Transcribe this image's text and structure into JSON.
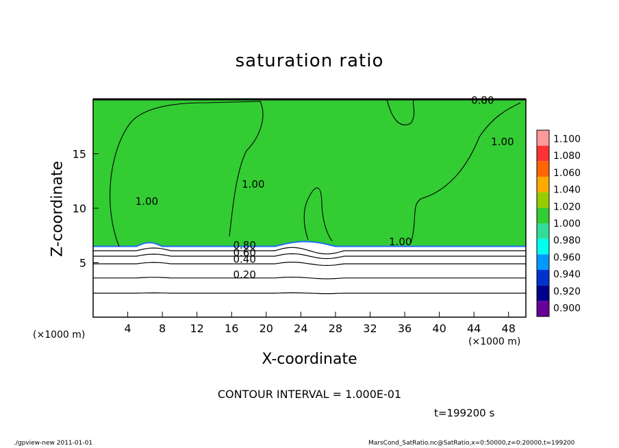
{
  "title": "saturation ratio",
  "footer": {
    "left": "./gpview-new  2011-01-01",
    "right": "MarsCond_SatRatio.nc@SatRatio,x=0:50000,z=0:20000,t=199200"
  },
  "colors": {
    "background": "#ffffff",
    "field_saturated": "#33cc33",
    "field_subsaturated": "#ffffff",
    "contour": "#000000"
  },
  "chart_data": {
    "type": "heatmap",
    "title": "saturation ratio",
    "xlabel": "X-coordinate",
    "ylabel": "Z-coordinate",
    "x_unit_label": "(×1000 m)",
    "x_unit_label_right": "(×1000 m)",
    "xlim": [
      0,
      50
    ],
    "ylim": [
      0,
      20
    ],
    "x_ticks": [
      4,
      8,
      12,
      16,
      20,
      24,
      28,
      32,
      36,
      40,
      44,
      48
    ],
    "y_ticks": [
      5,
      10,
      15
    ],
    "contour_interval": "CONTOUR INTERVAL = 1.000E-01",
    "time": "t=199200 s",
    "colorbar": {
      "levels": [
        "1.100",
        "1.080",
        "1.060",
        "1.040",
        "1.020",
        "1.000",
        "0.980",
        "0.960",
        "0.940",
        "0.920",
        "0.900"
      ],
      "colors": [
        "#ff9999",
        "#ff3333",
        "#ff6600",
        "#ffaa00",
        "#99cc00",
        "#33cc33",
        "#33dd99",
        "#00ffee",
        "#0099ff",
        "#0033cc",
        "#000088",
        "#660099"
      ]
    },
    "contour_labels": [
      {
        "text": "1.00",
        "x": 6.2,
        "y": 10.3
      },
      {
        "text": "1.00",
        "x": 18.5,
        "y": 11.9
      },
      {
        "text": "1.00",
        "x": 35.5,
        "y": 6.6
      },
      {
        "text": "1.00",
        "x": 47.3,
        "y": 15.8
      },
      {
        "text": "0.80",
        "x": 17.5,
        "y": 6.3
      },
      {
        "text": "0.60",
        "x": 17.5,
        "y": 5.6
      },
      {
        "text": "0.40",
        "x": 17.5,
        "y": 5.0
      },
      {
        "text": "0.20",
        "x": 17.5,
        "y": 3.6
      },
      {
        "text": "0.80",
        "x": 45.0,
        "y": 19.6
      }
    ],
    "cloud_base_z": 6.5,
    "subsaturated_contours": [
      {
        "level": 0.8,
        "z": 6.1
      },
      {
        "level": 0.6,
        "z": 5.6
      },
      {
        "level": 0.4,
        "z": 4.9
      },
      {
        "level": 0.2,
        "z": 3.6
      },
      {
        "level": 0.1,
        "z": 2.2
      }
    ]
  }
}
